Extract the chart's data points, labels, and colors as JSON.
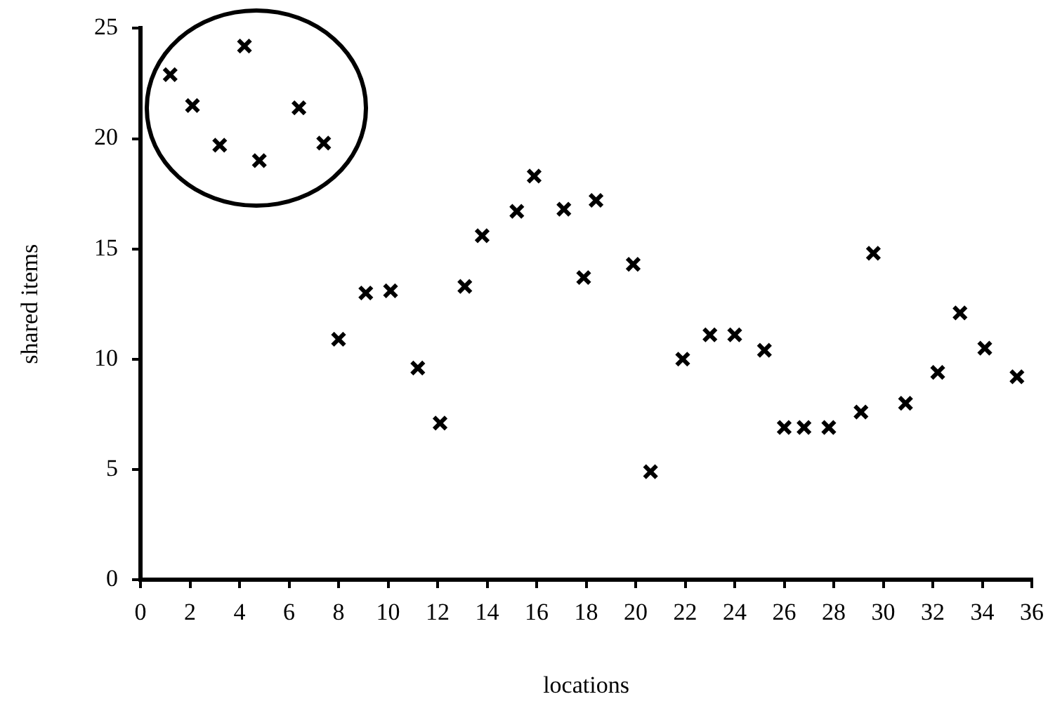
{
  "chart_data": {
    "type": "scatter",
    "xlabel": "locations",
    "ylabel": "shared items",
    "xlim": [
      0,
      36
    ],
    "xticks": [
      0,
      2,
      4,
      6,
      8,
      10,
      12,
      14,
      16,
      18,
      20,
      22,
      24,
      26,
      28,
      30,
      32,
      34,
      36
    ],
    "ylim": [
      0,
      25
    ],
    "yticks": [
      0,
      5,
      10,
      15,
      20,
      25
    ],
    "grid": false,
    "legend": false,
    "marker": "cross",
    "series": [
      {
        "color": "#000000",
        "x": [
          1.2,
          2.1,
          3.2,
          4.2,
          4.8,
          6.4,
          7.4,
          8.0,
          9.1,
          10.1,
          11.2,
          12.1,
          13.1,
          13.8,
          15.2,
          15.9,
          17.1,
          17.9,
          18.4,
          19.9,
          20.6,
          21.9,
          23.0,
          24.0,
          25.2,
          26.0,
          26.8,
          27.8,
          29.1,
          29.6,
          30.9,
          32.2,
          33.1,
          34.1,
          35.4
        ],
        "values": [
          22.9,
          21.5,
          19.7,
          24.2,
          19.0,
          21.4,
          19.8,
          10.9,
          13.0,
          13.1,
          9.6,
          7.1,
          13.3,
          15.6,
          16.7,
          18.3,
          16.8,
          13.7,
          17.2,
          14.3,
          4.9,
          10.0,
          11.1,
          11.1,
          10.4,
          6.9,
          6.9,
          6.9,
          7.6,
          14.8,
          8.0,
          9.4,
          12.1,
          10.5,
          9.2
        ]
      }
    ]
  }
}
